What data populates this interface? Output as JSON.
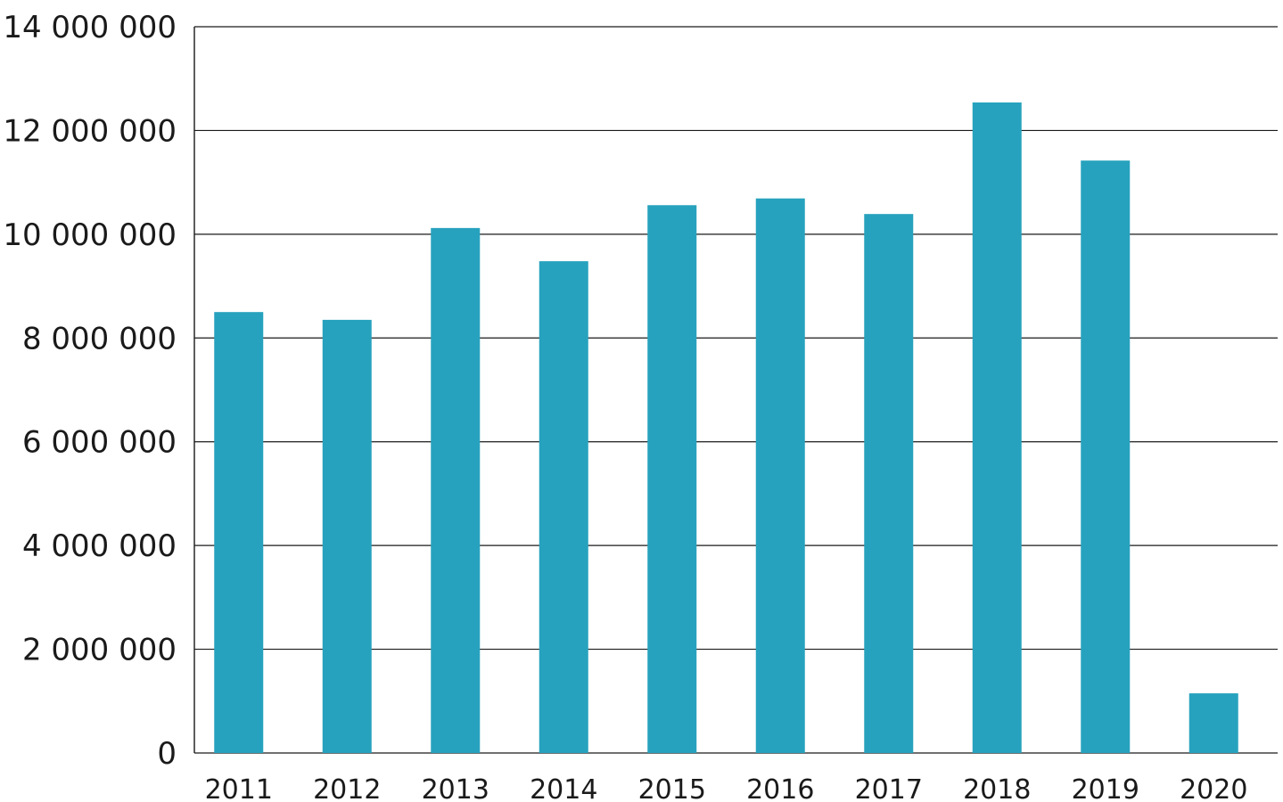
{
  "chart_data": {
    "type": "bar",
    "categories": [
      "2011",
      "2012",
      "2013",
      "2014",
      "2015",
      "2016",
      "2017",
      "2018",
      "2019",
      "2020"
    ],
    "values": [
      8500000,
      8350000,
      10120000,
      9480000,
      10560000,
      10690000,
      10390000,
      12540000,
      11420000,
      1150000
    ],
    "title": "",
    "xlabel": "",
    "ylabel": "",
    "ylim": [
      0,
      14000000
    ],
    "yticks": [
      0,
      2000000,
      4000000,
      6000000,
      8000000,
      10000000,
      12000000,
      14000000
    ],
    "ytick_labels": [
      "0",
      "2 000 000",
      "4 000 000",
      "6 000 000",
      "8 000 000",
      "10 000 000",
      "12 000 000",
      "14 000 000"
    ],
    "grid": true,
    "legend": "none",
    "colors": {
      "bar": "#27A2BE",
      "grid": "#1a1a1a",
      "text": "#1a1a1a"
    }
  }
}
